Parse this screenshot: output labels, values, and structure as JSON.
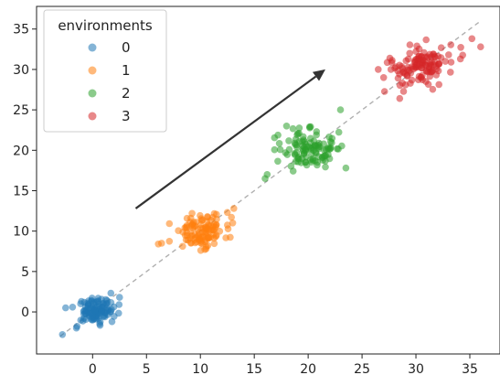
{
  "chart_data": {
    "type": "scatter",
    "title": "",
    "xlabel": "",
    "ylabel": "",
    "xlim": [
      -5.2,
      37.8
    ],
    "ylim": [
      -5.2,
      37.8
    ],
    "xticks": [
      0,
      5,
      10,
      15,
      20,
      25,
      30,
      35
    ],
    "yticks": [
      0,
      5,
      10,
      15,
      20,
      25,
      30,
      35
    ],
    "grid": false,
    "legend": {
      "title": "environments",
      "placement": "top-left"
    },
    "reference_line": {
      "style": "dashed",
      "color": "#b0b0b0",
      "from": [
        -3,
        -3
      ],
      "to": [
        36,
        36
      ]
    },
    "arrow": {
      "color": "#333333",
      "from": [
        4,
        12.8
      ],
      "to": [
        21.6,
        30
      ]
    },
    "series": [
      {
        "name": "0",
        "color": "#1f77b4",
        "center": [
          0.3,
          0.2
        ],
        "spread": [
          0.9,
          0.8
        ],
        "n": 110,
        "extra_points": [
          [
            -2.8,
            -2.8
          ],
          [
            -2.5,
            0.5
          ],
          [
            2.5,
            1.8
          ],
          [
            -1.5,
            -2.0
          ],
          [
            1.8,
            -1.2
          ]
        ]
      },
      {
        "name": "1",
        "color": "#ff7f0e",
        "center": [
          10.0,
          10.0
        ],
        "spread": [
          1.2,
          1.0
        ],
        "n": 110,
        "extra_points": [
          [
            6.1,
            8.4
          ],
          [
            13.1,
            12.8
          ],
          [
            13.0,
            11.0
          ],
          [
            6.4,
            8.5
          ],
          [
            12.5,
            12.3
          ]
        ]
      },
      {
        "name": "2",
        "color": "#2ca02c",
        "center": [
          20.0,
          20.0
        ],
        "spread": [
          1.3,
          1.2
        ],
        "n": 110,
        "extra_points": [
          [
            16.0,
            16.5
          ],
          [
            23.0,
            25.0
          ],
          [
            23.5,
            17.8
          ],
          [
            18.0,
            23.0
          ],
          [
            16.2,
            17.0
          ]
        ]
      },
      {
        "name": "3",
        "color": "#d62728",
        "center": [
          30.5,
          30.5
        ],
        "spread": [
          1.6,
          1.3
        ],
        "n": 120,
        "extra_points": [
          [
            36.0,
            32.8
          ],
          [
            27.0,
            29.0
          ],
          [
            26.5,
            30.0
          ],
          [
            35.2,
            33.8
          ],
          [
            28.5,
            26.4
          ]
        ]
      }
    ]
  }
}
